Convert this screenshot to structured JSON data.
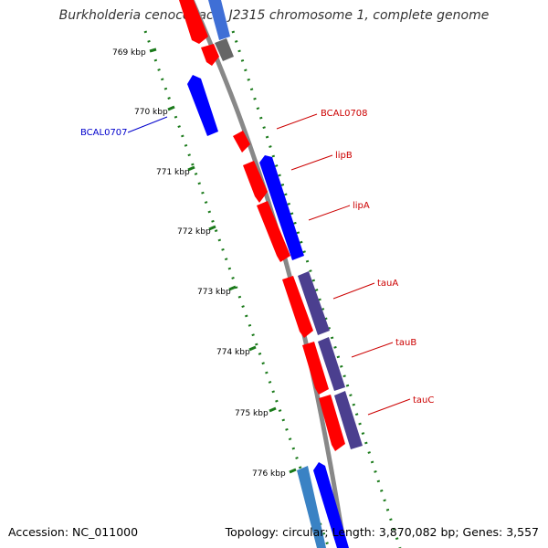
{
  "title": "Burkholderia cenocepacia J2315 chromosome 1, complete genome",
  "footer": {
    "accession": "Accession: NC_011000",
    "summary": "Topology: circular; Length: 3,870,082 bp; Genes: 3,557"
  },
  "colors": {
    "backbone": "#888888",
    "tick_mark": "#1a7a1a",
    "forward_gene": "#ff0000",
    "reverse_gene": "#0000ff",
    "operon_gene": "#4b3f8f",
    "rna_gene": "#666666",
    "light_blue_gene": "#3a82c4",
    "label_red": "#cc0000",
    "label_blue": "#0000cc"
  },
  "scale_labels": [
    "769 kbp",
    "770 kbp",
    "771 kbp",
    "772 kbp",
    "773 kbp",
    "774 kbp",
    "775 kbp",
    "776 kbp"
  ],
  "gene_labels": [
    {
      "text": "BCAL0708",
      "color": "red"
    },
    {
      "text": "lipB",
      "color": "red"
    },
    {
      "text": "lipA",
      "color": "red"
    },
    {
      "text": "tauA",
      "color": "red"
    },
    {
      "text": "tauB",
      "color": "red"
    },
    {
      "text": "tauC",
      "color": "red"
    },
    {
      "text": "BCAL0707",
      "color": "blue"
    }
  ]
}
